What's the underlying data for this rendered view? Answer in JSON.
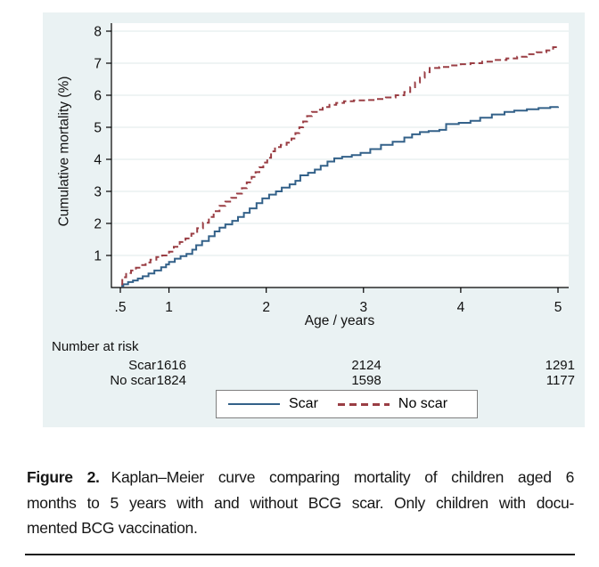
{
  "figure": {
    "y_axis": {
      "title": "Cumulative mortality (%)",
      "tick_labels": [
        "1",
        "2",
        "3",
        "4",
        "5",
        "6",
        "7",
        "8"
      ]
    },
    "x_axis": {
      "title": "Age / years",
      "tick_labels": [
        ".5",
        "1",
        "2",
        "3",
        "4",
        "5"
      ]
    },
    "number_at_risk": {
      "header": "Number at risk",
      "rows": [
        {
          "label": "Scar",
          "values": [
            "1616",
            "2124",
            "1291"
          ]
        },
        {
          "label": "No scar",
          "values": [
            "1824",
            "1598",
            "1177"
          ]
        }
      ]
    },
    "legend": {
      "items": [
        {
          "label": "Scar"
        },
        {
          "label": "No scar"
        }
      ]
    }
  },
  "colors": {
    "panel_bg": "#eaf2f3",
    "plot_bg": "#ffffff",
    "grid": "#dfe9ea",
    "axis": "#000000",
    "scar_line": "#336189",
    "no_scar_line": "#9a3e44",
    "legend_border": "#7f7f7f"
  },
  "chart_data": {
    "type": "line",
    "subtype": "kaplan-meier-step",
    "title": "",
    "xlabel": "Age / years",
    "ylabel": "Cumulative mortality (%)",
    "xlim": [
      0.5,
      5
    ],
    "ylim": [
      0,
      8
    ],
    "x_ticks": [
      0.5,
      1,
      2,
      3,
      4,
      5
    ],
    "y_ticks": [
      1,
      2,
      3,
      4,
      5,
      6,
      7,
      8
    ],
    "grid": "horizontal",
    "legend_position": "bottom-center",
    "series": [
      {
        "name": "Scar",
        "color": "#336189",
        "dash": "solid",
        "points": [
          [
            0.51,
            0.05
          ],
          [
            0.53,
            0.1
          ],
          [
            0.58,
            0.17
          ],
          [
            0.63,
            0.22
          ],
          [
            0.68,
            0.28
          ],
          [
            0.73,
            0.35
          ],
          [
            0.79,
            0.44
          ],
          [
            0.85,
            0.53
          ],
          [
            0.92,
            0.63
          ],
          [
            0.97,
            0.72
          ],
          [
            1.0,
            0.8
          ],
          [
            1.06,
            0.9
          ],
          [
            1.12,
            0.98
          ],
          [
            1.18,
            1.05
          ],
          [
            1.24,
            1.18
          ],
          [
            1.28,
            1.32
          ],
          [
            1.34,
            1.45
          ],
          [
            1.41,
            1.6
          ],
          [
            1.47,
            1.75
          ],
          [
            1.52,
            1.87
          ],
          [
            1.58,
            1.97
          ],
          [
            1.65,
            2.08
          ],
          [
            1.71,
            2.2
          ],
          [
            1.77,
            2.33
          ],
          [
            1.83,
            2.47
          ],
          [
            1.9,
            2.63
          ],
          [
            1.96,
            2.78
          ],
          [
            2.03,
            2.9
          ],
          [
            2.1,
            3.0
          ],
          [
            2.16,
            3.12
          ],
          [
            2.24,
            3.22
          ],
          [
            2.3,
            3.33
          ],
          [
            2.35,
            3.5
          ],
          [
            2.43,
            3.58
          ],
          [
            2.5,
            3.68
          ],
          [
            2.56,
            3.8
          ],
          [
            2.63,
            3.93
          ],
          [
            2.7,
            4.03
          ],
          [
            2.78,
            4.08
          ],
          [
            2.88,
            4.13
          ],
          [
            2.97,
            4.2
          ],
          [
            3.07,
            4.32
          ],
          [
            3.18,
            4.45
          ],
          [
            3.3,
            4.55
          ],
          [
            3.42,
            4.68
          ],
          [
            3.5,
            4.78
          ],
          [
            3.58,
            4.85
          ],
          [
            3.67,
            4.88
          ],
          [
            3.78,
            4.92
          ],
          [
            3.85,
            5.1
          ],
          [
            3.98,
            5.14
          ],
          [
            4.1,
            5.2
          ],
          [
            4.2,
            5.3
          ],
          [
            4.32,
            5.4
          ],
          [
            4.45,
            5.48
          ],
          [
            4.55,
            5.52
          ],
          [
            4.68,
            5.56
          ],
          [
            4.8,
            5.6
          ],
          [
            4.92,
            5.63
          ],
          [
            5.0,
            5.65
          ]
        ]
      },
      {
        "name": "No scar",
        "color": "#9a3e44",
        "dash": "dashed",
        "points": [
          [
            0.51,
            0.1
          ],
          [
            0.52,
            0.32
          ],
          [
            0.56,
            0.45
          ],
          [
            0.61,
            0.53
          ],
          [
            0.66,
            0.62
          ],
          [
            0.71,
            0.7
          ],
          [
            0.76,
            0.78
          ],
          [
            0.81,
            0.87
          ],
          [
            0.87,
            0.95
          ],
          [
            0.93,
            1.0
          ],
          [
            1.0,
            1.12
          ],
          [
            1.05,
            1.27
          ],
          [
            1.11,
            1.42
          ],
          [
            1.17,
            1.53
          ],
          [
            1.23,
            1.68
          ],
          [
            1.29,
            1.85
          ],
          [
            1.35,
            2.02
          ],
          [
            1.41,
            2.2
          ],
          [
            1.46,
            2.38
          ],
          [
            1.52,
            2.55
          ],
          [
            1.58,
            2.68
          ],
          [
            1.64,
            2.8
          ],
          [
            1.7,
            2.93
          ],
          [
            1.75,
            3.1
          ],
          [
            1.8,
            3.28
          ],
          [
            1.85,
            3.45
          ],
          [
            1.89,
            3.6
          ],
          [
            1.93,
            3.75
          ],
          [
            1.97,
            3.9
          ],
          [
            2.01,
            4.05
          ],
          [
            2.05,
            4.25
          ],
          [
            2.09,
            4.38
          ],
          [
            2.15,
            4.45
          ],
          [
            2.21,
            4.52
          ],
          [
            2.26,
            4.65
          ],
          [
            2.3,
            4.82
          ],
          [
            2.34,
            5.0
          ],
          [
            2.38,
            5.18
          ],
          [
            2.42,
            5.35
          ],
          [
            2.47,
            5.48
          ],
          [
            2.52,
            5.55
          ],
          [
            2.58,
            5.63
          ],
          [
            2.65,
            5.7
          ],
          [
            2.72,
            5.76
          ],
          [
            2.8,
            5.81
          ],
          [
            2.9,
            5.84
          ],
          [
            3.02,
            5.85
          ],
          [
            3.13,
            5.88
          ],
          [
            3.23,
            5.93
          ],
          [
            3.33,
            6.0
          ],
          [
            3.42,
            6.1
          ],
          [
            3.48,
            6.25
          ],
          [
            3.53,
            6.4
          ],
          [
            3.58,
            6.55
          ],
          [
            3.63,
            6.72
          ],
          [
            3.68,
            6.85
          ],
          [
            3.78,
            6.88
          ],
          [
            3.9,
            6.93
          ],
          [
            4.0,
            6.97
          ],
          [
            4.1,
            7.0
          ],
          [
            4.22,
            7.05
          ],
          [
            4.35,
            7.1
          ],
          [
            4.47,
            7.15
          ],
          [
            4.58,
            7.2
          ],
          [
            4.68,
            7.28
          ],
          [
            4.78,
            7.34
          ],
          [
            4.88,
            7.4
          ],
          [
            4.95,
            7.5
          ],
          [
            5.0,
            7.55
          ]
        ]
      }
    ],
    "number_at_risk": {
      "header": "Number at risk",
      "rows": [
        {
          "label": "Scar",
          "values": [
            1616,
            2124,
            1291
          ]
        },
        {
          "label": "No scar",
          "values": [
            1824,
            1598,
            1177
          ]
        }
      ]
    }
  },
  "caption": {
    "label": "Figure 2.",
    "line1": "Kaplan–Meier curve comparing mortality of children aged 6",
    "line2": "months to 5 years with and without BCG scar. Only children with docu-",
    "line3": "mented BCG vaccination."
  }
}
